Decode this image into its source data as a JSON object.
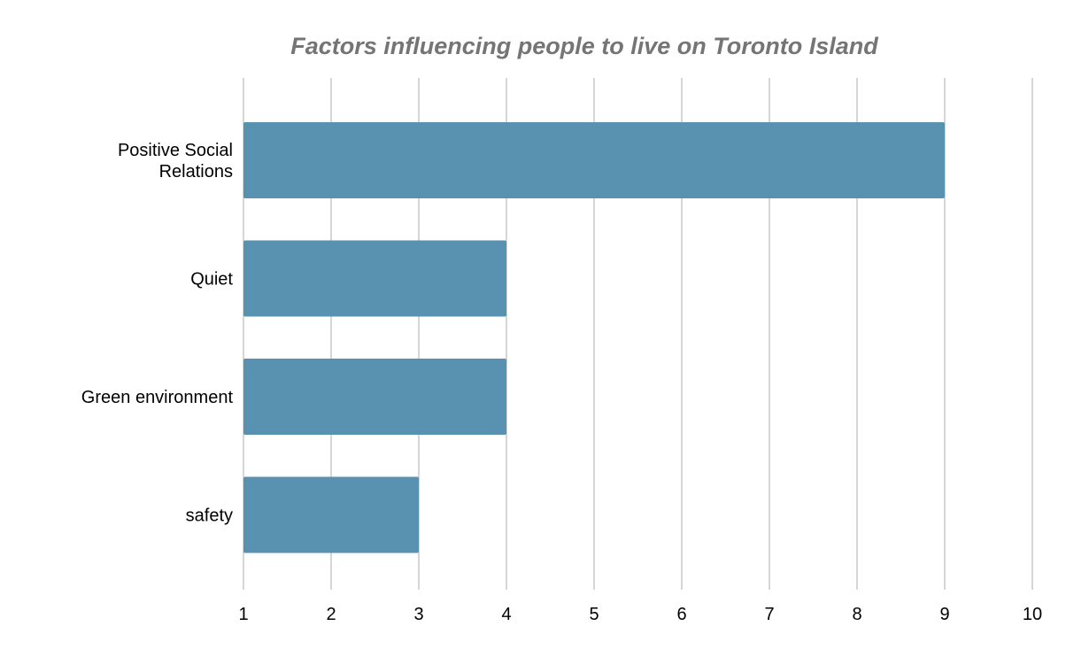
{
  "chart_data": {
    "type": "bar",
    "orientation": "horizontal",
    "title": "Factors influencing people to live on Toronto Island",
    "xlabel": "",
    "ylabel": "",
    "categories": [
      [
        "Positive Social",
        "Relations"
      ],
      [
        "Quiet"
      ],
      [
        "Green environment"
      ],
      [
        "safety"
      ]
    ],
    "values": [
      9,
      4,
      4,
      3
    ],
    "xlim": [
      1,
      10
    ],
    "xticks": [
      "1",
      "2",
      "3",
      "4",
      "5",
      "6",
      "7",
      "8",
      "9",
      "10"
    ],
    "grid": true,
    "legend": "none",
    "colors": {
      "bar": "#5892b0",
      "grid": "#c8c8c8",
      "title": "#757575",
      "text": "#000000"
    }
  }
}
